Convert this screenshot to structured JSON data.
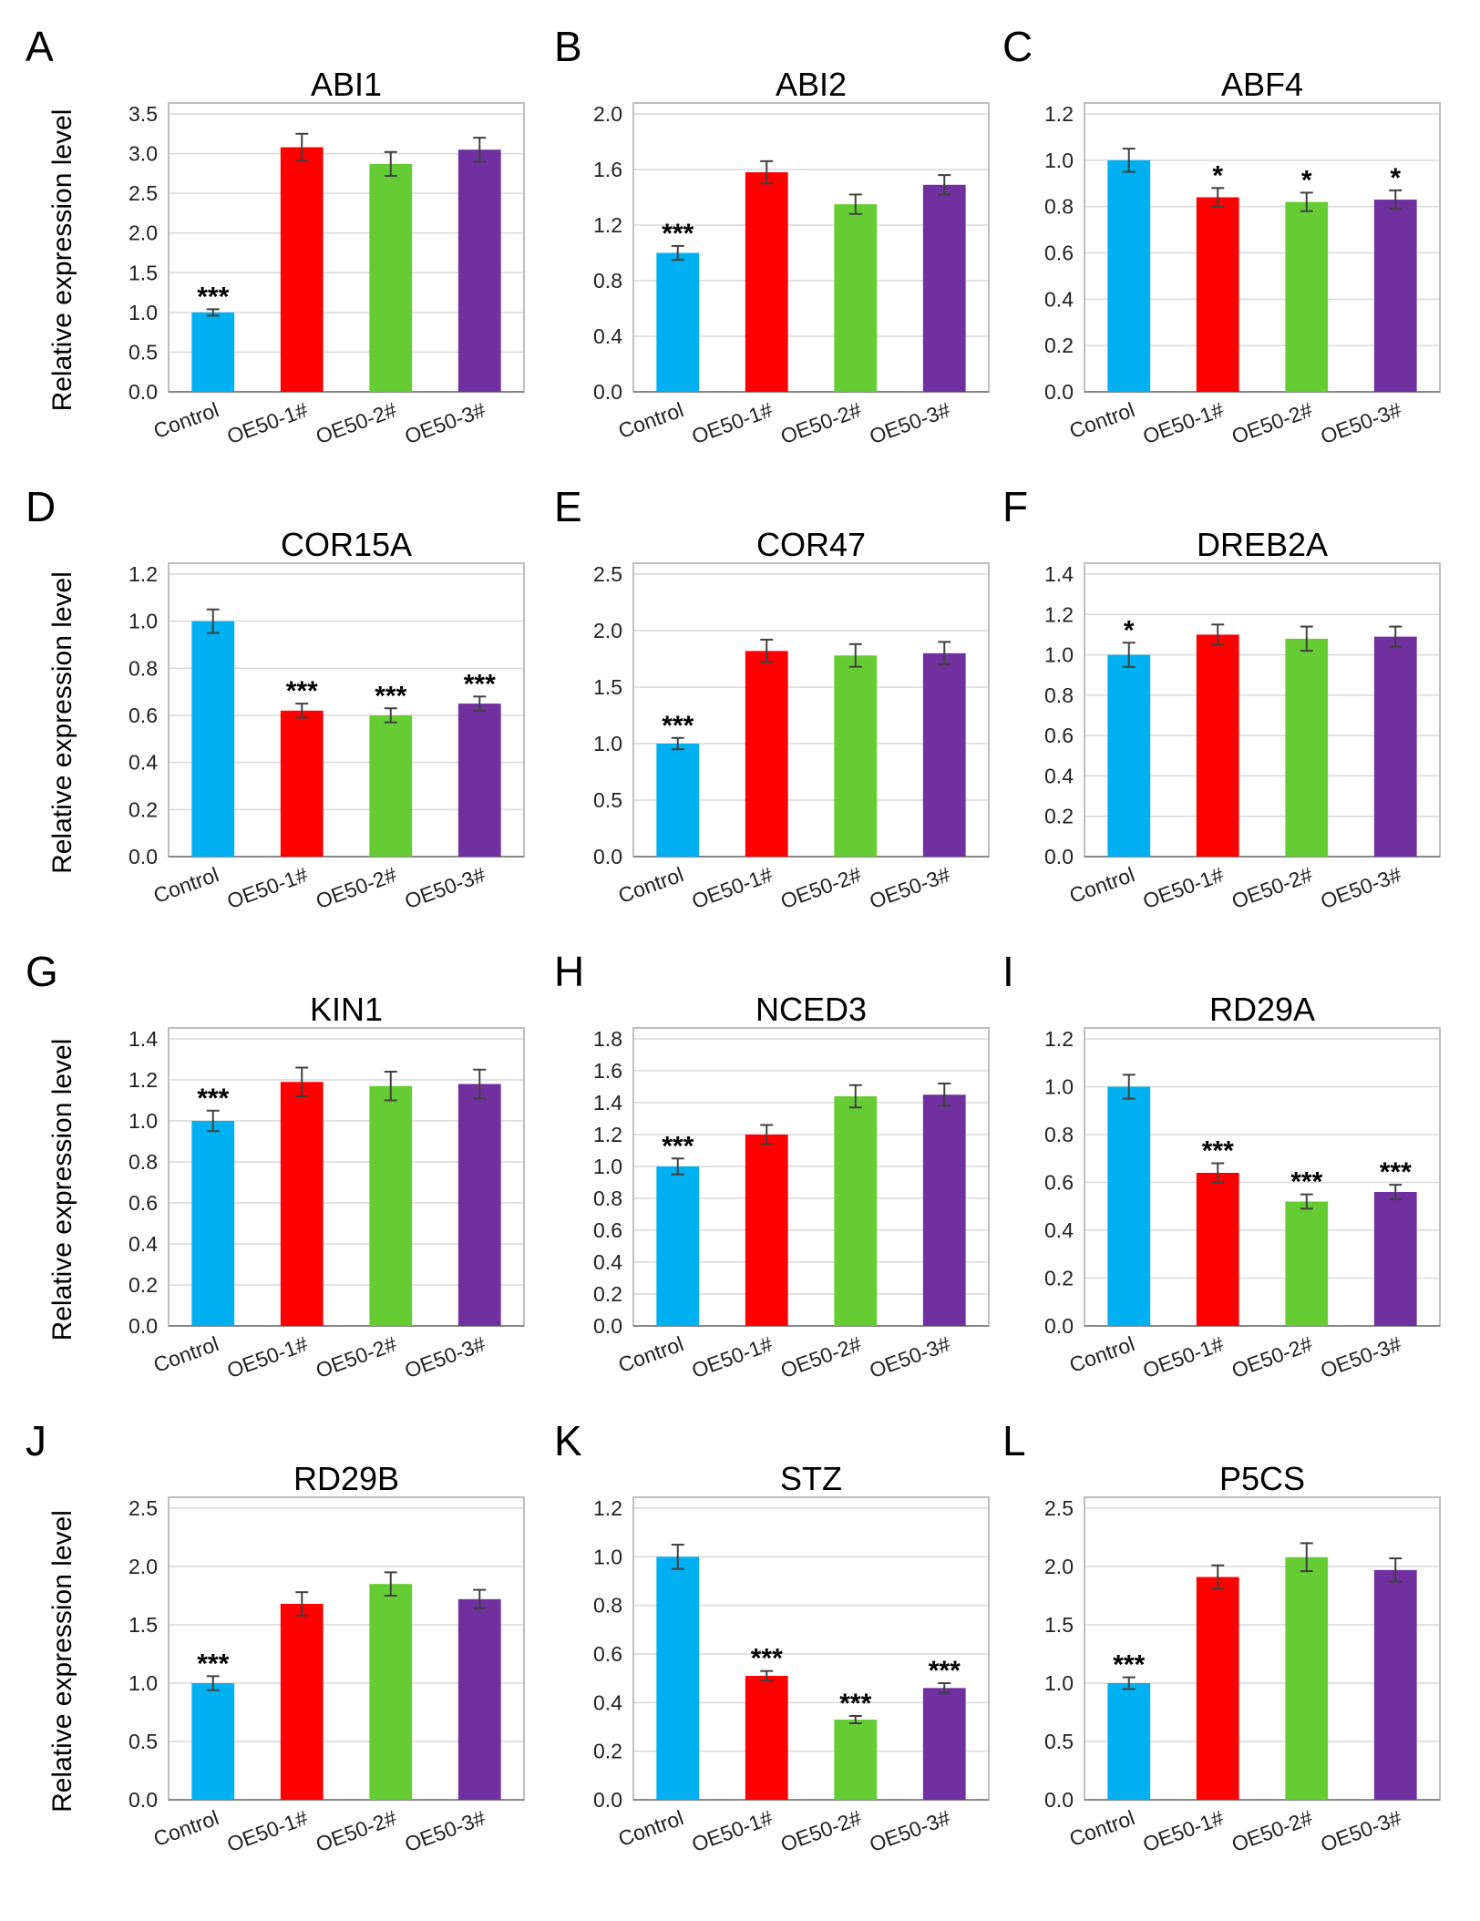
{
  "figure": {
    "ylabel": "Relative expression level",
    "categories": [
      "Control",
      "OE50-1#",
      "OE50-2#",
      "OE50-3#"
    ],
    "colors": [
      "#00b0f0",
      "#ff0000",
      "#66cc33",
      "#7030a0"
    ]
  },
  "chart_data": [
    {
      "panel": "A",
      "type": "bar",
      "title": "ABI1",
      "ylim": [
        0,
        3.5
      ],
      "ticks": [
        "0.0",
        "0.5",
        "1.0",
        "1.5",
        "2.0",
        "2.5",
        "3.0",
        "3.5"
      ],
      "values": [
        1.0,
        3.08,
        2.87,
        3.05
      ],
      "errors": [
        0.04,
        0.17,
        0.15,
        0.15
      ],
      "significance": [
        "***",
        "",
        "",
        ""
      ]
    },
    {
      "panel": "B",
      "type": "bar",
      "title": "ABI2",
      "ylim": [
        0,
        2.0
      ],
      "ticks": [
        "0.0",
        "0.4",
        "0.8",
        "1.2",
        "1.6",
        "2.0"
      ],
      "values": [
        1.0,
        1.58,
        1.35,
        1.49
      ],
      "errors": [
        0.05,
        0.08,
        0.07,
        0.07
      ],
      "significance": [
        "***",
        "",
        "",
        ""
      ]
    },
    {
      "panel": "C",
      "type": "bar",
      "title": "ABF4",
      "ylim": [
        0,
        1.2
      ],
      "ticks": [
        "0.0",
        "0.2",
        "0.4",
        "0.6",
        "0.8",
        "1.0",
        "1.2"
      ],
      "values": [
        1.0,
        0.84,
        0.82,
        0.83
      ],
      "errors": [
        0.05,
        0.04,
        0.04,
        0.04
      ],
      "significance": [
        "",
        "*",
        "*",
        "*"
      ]
    },
    {
      "panel": "D",
      "type": "bar",
      "title": "COR15A",
      "ylim": [
        0,
        1.2
      ],
      "ticks": [
        "0.0",
        "0.2",
        "0.4",
        "0.6",
        "0.8",
        "1.0",
        "1.2"
      ],
      "values": [
        1.0,
        0.62,
        0.6,
        0.65
      ],
      "errors": [
        0.05,
        0.03,
        0.03,
        0.03
      ],
      "significance": [
        "",
        "***",
        "***",
        "***"
      ]
    },
    {
      "panel": "E",
      "type": "bar",
      "title": "COR47",
      "ylim": [
        0,
        2.5
      ],
      "ticks": [
        "0.0",
        "0.5",
        "1.0",
        "1.5",
        "2.0",
        "2.5"
      ],
      "values": [
        1.0,
        1.82,
        1.78,
        1.8
      ],
      "errors": [
        0.05,
        0.1,
        0.1,
        0.1
      ],
      "significance": [
        "***",
        "",
        "",
        ""
      ]
    },
    {
      "panel": "F",
      "type": "bar",
      "title": "DREB2A",
      "ylim": [
        0,
        1.4
      ],
      "ticks": [
        "0.0",
        "0.2",
        "0.4",
        "0.6",
        "0.8",
        "1.0",
        "1.2",
        "1.4"
      ],
      "values": [
        1.0,
        1.1,
        1.08,
        1.09
      ],
      "errors": [
        0.06,
        0.05,
        0.06,
        0.05
      ],
      "significance": [
        "*",
        "",
        "",
        ""
      ]
    },
    {
      "panel": "G",
      "type": "bar",
      "title": "KIN1",
      "ylim": [
        0,
        1.4
      ],
      "ticks": [
        "0.0",
        "0.2",
        "0.4",
        "0.6",
        "0.8",
        "1.0",
        "1.2",
        "1.4"
      ],
      "values": [
        1.0,
        1.19,
        1.17,
        1.18
      ],
      "errors": [
        0.05,
        0.07,
        0.07,
        0.07
      ],
      "significance": [
        "***",
        "",
        "",
        ""
      ]
    },
    {
      "panel": "H",
      "type": "bar",
      "title": "NCED3",
      "ylim": [
        0,
        1.8
      ],
      "ticks": [
        "0.0",
        "0.2",
        "0.4",
        "0.6",
        "0.8",
        "1.0",
        "1.2",
        "1.4",
        "1.6",
        "1.8"
      ],
      "values": [
        1.0,
        1.2,
        1.44,
        1.45
      ],
      "errors": [
        0.05,
        0.06,
        0.07,
        0.07
      ],
      "significance": [
        "***",
        "",
        "",
        ""
      ]
    },
    {
      "panel": "I",
      "type": "bar",
      "title": "RD29A",
      "ylim": [
        0,
        1.2
      ],
      "ticks": [
        "0.0",
        "0.2",
        "0.4",
        "0.6",
        "0.8",
        "1.0",
        "1.2"
      ],
      "values": [
        1.0,
        0.64,
        0.52,
        0.56
      ],
      "errors": [
        0.05,
        0.04,
        0.03,
        0.03
      ],
      "significance": [
        "",
        "***",
        "***",
        "***"
      ]
    },
    {
      "panel": "J",
      "type": "bar",
      "title": "RD29B",
      "ylim": [
        0,
        2.5
      ],
      "ticks": [
        "0.0",
        "0.5",
        "1.0",
        "1.5",
        "2.0",
        "2.5"
      ],
      "values": [
        1.0,
        1.68,
        1.85,
        1.72
      ],
      "errors": [
        0.06,
        0.1,
        0.1,
        0.08
      ],
      "significance": [
        "***",
        "",
        "",
        ""
      ]
    },
    {
      "panel": "K",
      "type": "bar",
      "title": "STZ",
      "ylim": [
        0,
        1.2
      ],
      "ticks": [
        "0.0",
        "0.2",
        "0.4",
        "0.6",
        "0.8",
        "1.0",
        "1.2"
      ],
      "values": [
        1.0,
        0.51,
        0.33,
        0.46
      ],
      "errors": [
        0.05,
        0.02,
        0.015,
        0.02
      ],
      "significance": [
        "",
        "***",
        "***",
        "***"
      ]
    },
    {
      "panel": "L",
      "type": "bar",
      "title": "P5CS",
      "ylim": [
        0,
        2.5
      ],
      "ticks": [
        "0.0",
        "0.5",
        "1.0",
        "1.5",
        "2.0",
        "2.5"
      ],
      "values": [
        1.0,
        1.91,
        2.08,
        1.97
      ],
      "errors": [
        0.05,
        0.1,
        0.12,
        0.1
      ],
      "significance": [
        "***",
        "",
        "",
        ""
      ]
    }
  ]
}
